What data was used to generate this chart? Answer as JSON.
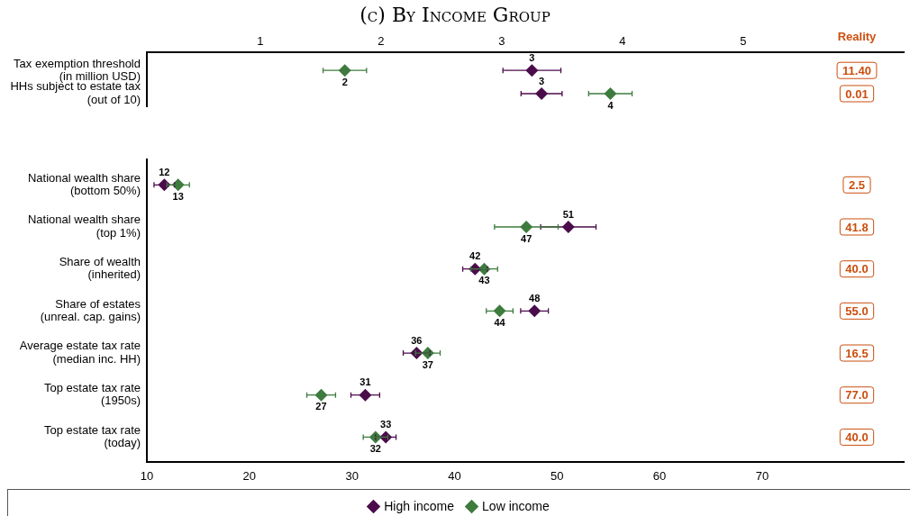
{
  "chart_data": [
    {
      "type": "scatter",
      "title": "(c) By Income Group",
      "orientation": "horizontal",
      "marker": "diamond",
      "grid": false,
      "legend": false,
      "categories": [
        "Tax exemption threshold\n(in million USD)",
        "HHs subject to estate tax\n(out of 10)"
      ],
      "xlim": [
        0.06,
        6.33
      ],
      "xticks": [
        1,
        2,
        3,
        4,
        5
      ],
      "series": [
        {
          "color": "#4b0c4b",
          "values": [
            3.25,
            3.33
          ],
          "errors": [
            0.24,
            0.17
          ],
          "value_labels": [
            "3",
            "3"
          ]
        },
        {
          "color": "#3e7b3e",
          "values": [
            1.7,
            3.9
          ],
          "errors": [
            0.18,
            0.18
          ],
          "value_labels": [
            "2",
            "4"
          ]
        }
      ],
      "annotations": [
        "Reality",
        {
          "text": "11.40",
          "y": "Tax exemption threshold\n(in million USD)"
        },
        {
          "text": "0.01",
          "y": "HHs subject to estate tax\n(out of 10)"
        }
      ]
    },
    {
      "type": "scatter",
      "orientation": "horizontal",
      "marker": "diamond",
      "grid": false,
      "legend": "bottom",
      "categories": [
        "National wealth share\n(bottom 50%)",
        "National wealth share\n(top 1%)",
        "Share of wealth\n(inherited)",
        "Share of estates\n(unreal. cap. gains)",
        "Average estate tax rate\n(median inc. HH)",
        "Top estate tax rate\n(1950s)",
        "Top estate tax rate\n(today)"
      ],
      "xlim": [
        10,
        83.8
      ],
      "xticks": [
        10,
        20,
        30,
        40,
        50,
        60,
        70
      ],
      "series": [
        {
          "name": "High income",
          "color": "#4b0c4b",
          "values": [
            11.7,
            51.1,
            42.0,
            47.8,
            36.3,
            31.3,
            33.3
          ],
          "errors": [
            1.0,
            2.7,
            1.2,
            1.35,
            1.3,
            1.4,
            1.0
          ],
          "value_labels": [
            "12",
            "51",
            "42",
            "48",
            "36",
            "31",
            "33"
          ]
        },
        {
          "name": "Low income",
          "color": "#3e7b3e",
          "values": [
            13.05,
            47.0,
            42.9,
            44.4,
            37.4,
            27.0,
            32.3
          ],
          "errors": [
            1.1,
            3.1,
            1.3,
            1.3,
            1.2,
            1.4,
            1.2
          ],
          "value_labels": [
            "13",
            "47",
            "43",
            "44",
            "37",
            "27",
            "32"
          ]
        }
      ],
      "annotations": [
        {
          "text": "2.5",
          "y": "National wealth share\n(bottom 50%)"
        },
        {
          "text": "41.8",
          "y": "National wealth share\n(top 1%)"
        },
        {
          "text": "40.0",
          "y": "Share of wealth\n(inherited)"
        },
        {
          "text": "55.0",
          "y": "Share of estates\n(unreal. cap. gains)"
        },
        {
          "text": "16.5",
          "y": "Average estate tax rate\n(median inc. HH)"
        },
        {
          "text": "77.0",
          "y": "Top estate tax rate\n(1950s)"
        },
        {
          "text": "40.0",
          "y": "Top estate tax rate\n(today)"
        }
      ]
    }
  ]
}
